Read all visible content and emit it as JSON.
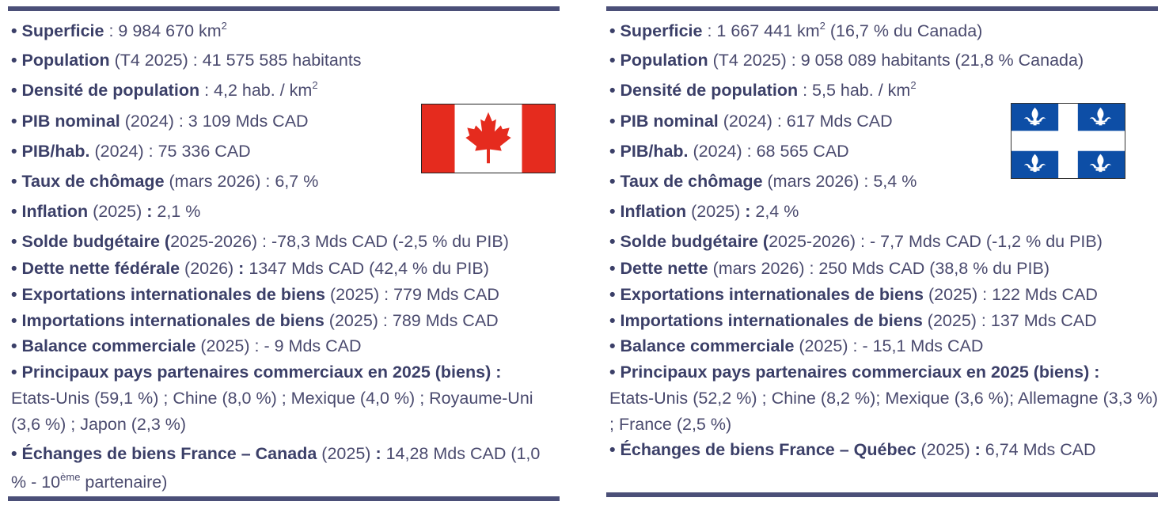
{
  "canada": {
    "items": {
      "superficie": {
        "label": "Superficie",
        "sep": " : ",
        "value": "9 984 670 km",
        "sup": "2"
      },
      "population": {
        "label": "Population",
        "period": " (T4 2025) : ",
        "value": "41 575 585 habitants"
      },
      "densite": {
        "label": "Densité de population",
        "sep": " : ",
        "value": "4,2 hab. / km",
        "sup": "2"
      },
      "pib_nominal": {
        "label": "PIB nominal",
        "period": " (2024) : ",
        "value": "3 109 Mds CAD"
      },
      "pib_hab": {
        "label": "PIB/hab.",
        "period": " (2024) : ",
        "value": "75 336 CAD"
      },
      "chomage": {
        "label": "Taux de chômage",
        "period": " (mars 2026) : ",
        "value": "6,7 %"
      },
      "inflation": {
        "label": "Inflation",
        "period": " (2025) ",
        "colon": ":",
        "value": " 2,1 %"
      },
      "solde": {
        "label": "Solde budgétaire (",
        "period": "2025-2026) : ",
        "value": "-78,3 Mds CAD (-2,5 % du PIB)"
      },
      "dette": {
        "label": "Dette nette fédérale",
        "period": " (2026) ",
        "colon": ":",
        "value": " 1347 Mds CAD (42,4 % du PIB)"
      },
      "exportations": {
        "label": "Exportations internationales de biens",
        "period": " (2025) : ",
        "value": "779 Mds CAD"
      },
      "importations": {
        "label": "Importations internationales de biens",
        "period": " (2025) : ",
        "value": "789 Mds CAD"
      },
      "balance": {
        "label": "Balance commerciale",
        "period": " (2025) : ",
        "value": "- 9 Mds CAD"
      },
      "partenaires": {
        "label": "Principaux pays partenaires commerciaux en 2025 (biens) :",
        "value": "Etats-Unis (59,1 %) ; Chine (8,0 %) ; Mexique (4,0 %) ; Royaume-Uni (3,6 %) ; Japon (2,3 %)"
      },
      "echanges": {
        "label": "Échanges de biens France – Canada",
        "period": " (2025) ",
        "colon": ":",
        "value": " 14,28 Mds CAD (1,0 % - 10",
        "sup": "ème",
        "suffix": " partenaire)"
      }
    },
    "flag_icon": "canada-flag-icon"
  },
  "quebec": {
    "items": {
      "superficie": {
        "label": "Superficie",
        "sep": " : ",
        "value": "1 667 441 km",
        "sup": "2",
        "suffix": " (16,7 % du Canada)"
      },
      "population": {
        "label": "Population",
        "period": " (T4 2025) : ",
        "value": "9 058 089 habitants (21,8 % Canada)"
      },
      "densite": {
        "label": "Densité de population",
        "sep": " : ",
        "value": "5,5 hab. / km",
        "sup": "2"
      },
      "pib_nominal": {
        "label": "PIB nominal",
        "period": " (2024) : ",
        "value": "617 Mds CAD"
      },
      "pib_hab": {
        "label": "PIB/hab.",
        "period": " (2024) : ",
        "value": "68 565 CAD"
      },
      "chomage": {
        "label": "Taux de chômage",
        "period": " (mars 2026) : ",
        "value": "5,4 %"
      },
      "inflation": {
        "label": "Inflation",
        "period": " (2025) ",
        "colon": ":",
        "value": " 2,4 %"
      },
      "solde": {
        "label": "Solde budgétaire (",
        "period": "2025-2026) : ",
        "value": "- 7,7 Mds CAD (-1,2 % du PIB)"
      },
      "dette": {
        "label": "Dette nette",
        "period": " (mars 2026) : ",
        "value": "250 Mds CAD (38,8 % du PIB)"
      },
      "exportations": {
        "label": "Exportations internationales de biens",
        "period": " (2025) : ",
        "value": "122 Mds CAD"
      },
      "importations": {
        "label": "Importations internationales de biens",
        "period": " (2025) : ",
        "value": "137 Mds CAD"
      },
      "balance": {
        "label": "Balance commerciale",
        "period": " (2025) : ",
        "value": "- 15,1 Mds CAD"
      },
      "partenaires": {
        "label": "Principaux pays partenaires commerciaux en 2025 (biens) :",
        "value": "Etats-Unis (52,2 %) ; Chine (8,2 %); Mexique (3,6 %); Allemagne (3,3 %) ; France (2,5 %)"
      },
      "echanges": {
        "label": "Échanges de biens France – Québec",
        "period": " (2025) ",
        "colon": ":",
        "value": " 6,74 Mds CAD"
      }
    },
    "flag_icon": "quebec-flag-icon"
  },
  "bullet": "•",
  "colors": {
    "rule": "#4b4f78",
    "text": "#4a4a6e",
    "canada_red": "#e52b1e",
    "quebec_blue": "#0d4ea6"
  }
}
